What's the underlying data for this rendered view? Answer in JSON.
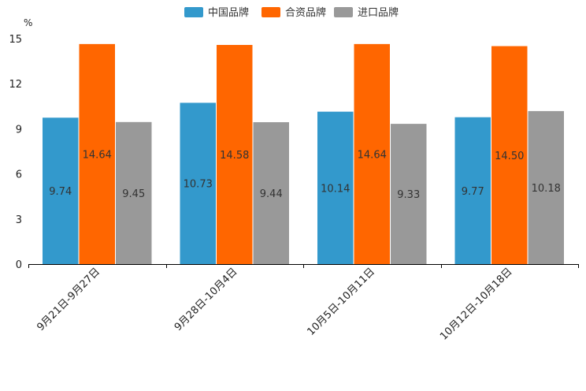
{
  "chart_data": {
    "type": "bar",
    "title": "",
    "xlabel": "",
    "ylabel": "",
    "unit": "%",
    "ylim": [
      0,
      15
    ],
    "yticks": [
      0,
      3,
      6,
      9,
      12,
      15
    ],
    "grid": false,
    "legend_position": "top-center",
    "categories": [
      "9月21日-9月27日",
      "9月28日-10月4日",
      "10月5日-10月11日",
      "10月12日-10月18日"
    ],
    "series": [
      {
        "name": "中国品牌",
        "color": "#3399cc",
        "values": [
          9.74,
          10.73,
          10.14,
          9.77
        ],
        "labels": [
          "9.74",
          "10.73",
          "10.14",
          "9.77"
        ]
      },
      {
        "name": "合资品牌",
        "color": "#ff6600",
        "values": [
          14.64,
          14.58,
          14.64,
          14.5
        ],
        "labels": [
          "14.64",
          "14.58",
          "14.64",
          "14.50"
        ]
      },
      {
        "name": "进口品牌",
        "color": "#999999",
        "values": [
          9.45,
          9.44,
          9.33,
          10.18
        ],
        "labels": [
          "9.45",
          "9.44",
          "9.33",
          "10.18"
        ]
      }
    ]
  }
}
